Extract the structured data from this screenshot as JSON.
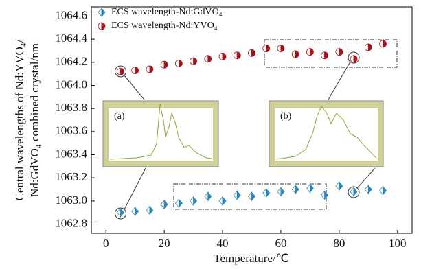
{
  "chart_data": {
    "type": "scatter",
    "xlabel": "Temperature/℃",
    "ylabel": [
      "Central wavelengths of Nd:YVO₄/",
      "Nd:GdVO₄ combined crystal/nm"
    ],
    "xlim": [
      -5,
      105
    ],
    "xticks": [
      0,
      20,
      40,
      60,
      80,
      100
    ],
    "ylim": [
      1062.72,
      1064.68
    ],
    "yticks": [
      1062.8,
      {
        "value": 1063.0,
        "label": "1063.0"
      },
      1063.2,
      1063.4,
      1063.6,
      1063.8,
      {
        "value": 1064.0,
        "label": "1064.0"
      },
      1064.2,
      1064.4,
      1064.6
    ],
    "legend": "upper left",
    "annotations": [
      "(a)",
      "(b)"
    ],
    "series": [
      {
        "name": "ECS wavelength-Nd:GdVO₄",
        "color": "#2e86b8",
        "marker": "diamond",
        "x": [
          5,
          10,
          15,
          20,
          25,
          30,
          35,
          40,
          45,
          50,
          55,
          60,
          65,
          70,
          75,
          80,
          85,
          90,
          95
        ],
        "values": [
          1062.9,
          1062.91,
          1062.92,
          1062.97,
          1062.98,
          1063.0,
          1063.04,
          1063.0,
          1063.05,
          1063.04,
          1063.07,
          1063.08,
          1063.1,
          1063.11,
          1063.05,
          1063.13,
          1063.08,
          1063.1,
          1063.09
        ]
      },
      {
        "name": "ECS wavelength-Nd:YVO₄",
        "color": "#a8141a",
        "marker": "circle",
        "x": [
          5,
          10,
          15,
          20,
          25,
          30,
          35,
          40,
          45,
          50,
          55,
          60,
          65,
          70,
          75,
          80,
          85,
          90,
          95
        ],
        "values": [
          1064.12,
          1064.13,
          1064.14,
          1064.18,
          1064.19,
          1064.21,
          1064.23,
          1064.25,
          1064.26,
          1064.28,
          1064.32,
          1064.32,
          1064.27,
          1064.29,
          1064.26,
          1064.29,
          1064.23,
          1064.33,
          1064.36
        ]
      }
    ]
  }
}
